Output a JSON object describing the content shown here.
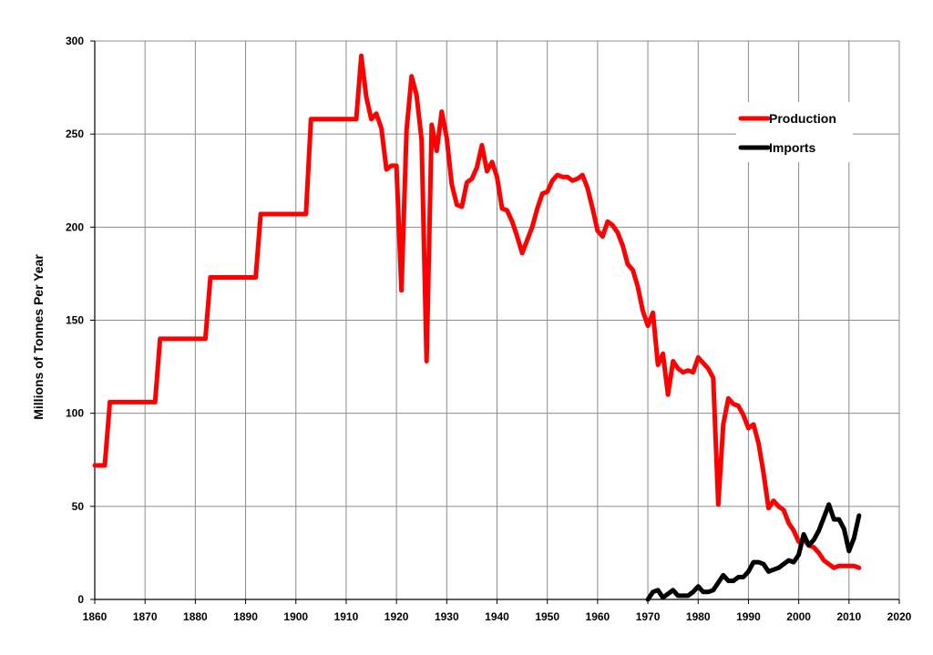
{
  "chart_data": {
    "type": "line",
    "title": "",
    "xlabel": "",
    "ylabel": "Millions of Tonnes Per Year",
    "xlim": [
      1860,
      2020
    ],
    "ylim": [
      0,
      300
    ],
    "x_ticks": [
      1860,
      1870,
      1880,
      1890,
      1900,
      1910,
      1920,
      1930,
      1940,
      1950,
      1960,
      1970,
      1980,
      1990,
      2000,
      2010,
      2020
    ],
    "y_ticks": [
      0,
      50,
      100,
      150,
      200,
      250,
      300
    ],
    "x_tick_labels": [
      "1860",
      "1870",
      "1880",
      "1890",
      "1900",
      "1910",
      "1920",
      "1930",
      "1940",
      "1950",
      "1960",
      "1970",
      "1980",
      "1990",
      "2000",
      "2010",
      "2020"
    ],
    "y_tick_labels": [
      "0",
      "50",
      "100",
      "150",
      "200",
      "250",
      "300"
    ],
    "grid": true,
    "legend_position": "top-right",
    "series": [
      {
        "name": "Production",
        "color": "#ff0000",
        "points": [
          [
            1860,
            72
          ],
          [
            1862,
            72
          ],
          [
            1863,
            106
          ],
          [
            1872,
            106
          ],
          [
            1873,
            140
          ],
          [
            1882,
            140
          ],
          [
            1883,
            173
          ],
          [
            1892,
            173
          ],
          [
            1893,
            207
          ],
          [
            1902,
            207
          ],
          [
            1903,
            258
          ],
          [
            1912,
            258
          ],
          [
            1913,
            292
          ],
          [
            1914,
            270
          ],
          [
            1915,
            258
          ],
          [
            1916,
            261
          ],
          [
            1917,
            253
          ],
          [
            1918,
            231
          ],
          [
            1919,
            233
          ],
          [
            1920,
            233
          ],
          [
            1921,
            166
          ],
          [
            1922,
            252
          ],
          [
            1923,
            281
          ],
          [
            1924,
            271
          ],
          [
            1925,
            247
          ],
          [
            1926,
            128
          ],
          [
            1927,
            255
          ],
          [
            1928,
            241
          ],
          [
            1929,
            262
          ],
          [
            1930,
            248
          ],
          [
            1931,
            223
          ],
          [
            1932,
            212
          ],
          [
            1933,
            211
          ],
          [
            1934,
            224
          ],
          [
            1935,
            226
          ],
          [
            1936,
            232
          ],
          [
            1937,
            244
          ],
          [
            1938,
            230
          ],
          [
            1939,
            235
          ],
          [
            1940,
            227
          ],
          [
            1941,
            210
          ],
          [
            1942,
            209
          ],
          [
            1943,
            203
          ],
          [
            1944,
            195
          ],
          [
            1945,
            186
          ],
          [
            1946,
            193
          ],
          [
            1947,
            200
          ],
          [
            1948,
            210
          ],
          [
            1949,
            218
          ],
          [
            1950,
            219
          ],
          [
            1951,
            225
          ],
          [
            1952,
            228
          ],
          [
            1953,
            227
          ],
          [
            1954,
            227
          ],
          [
            1955,
            225
          ],
          [
            1956,
            226
          ],
          [
            1957,
            228
          ],
          [
            1958,
            221
          ],
          [
            1959,
            210
          ],
          [
            1960,
            198
          ],
          [
            1961,
            195
          ],
          [
            1962,
            203
          ],
          [
            1963,
            201
          ],
          [
            1964,
            197
          ],
          [
            1965,
            190
          ],
          [
            1966,
            180
          ],
          [
            1967,
            177
          ],
          [
            1968,
            168
          ],
          [
            1969,
            155
          ],
          [
            1970,
            147
          ],
          [
            1971,
            154
          ],
          [
            1972,
            126
          ],
          [
            1973,
            132
          ],
          [
            1974,
            110
          ],
          [
            1975,
            128
          ],
          [
            1976,
            124
          ],
          [
            1977,
            122
          ],
          [
            1978,
            123
          ],
          [
            1979,
            122
          ],
          [
            1980,
            130
          ],
          [
            1981,
            127
          ],
          [
            1982,
            124
          ],
          [
            1983,
            119
          ],
          [
            1984,
            51
          ],
          [
            1985,
            94
          ],
          [
            1986,
            108
          ],
          [
            1987,
            105
          ],
          [
            1988,
            104
          ],
          [
            1989,
            99
          ],
          [
            1990,
            92
          ],
          [
            1991,
            94
          ],
          [
            1992,
            84
          ],
          [
            1993,
            68
          ],
          [
            1994,
            49
          ],
          [
            1995,
            53
          ],
          [
            1996,
            50
          ],
          [
            1997,
            48
          ],
          [
            1998,
            41
          ],
          [
            1999,
            37
          ],
          [
            2000,
            31
          ],
          [
            2001,
            32
          ],
          [
            2002,
            29
          ],
          [
            2003,
            28
          ],
          [
            2004,
            25
          ],
          [
            2005,
            21
          ],
          [
            2006,
            19
          ],
          [
            2007,
            17
          ],
          [
            2008,
            18
          ],
          [
            2009,
            18
          ],
          [
            2010,
            18
          ],
          [
            2011,
            18
          ],
          [
            2012,
            17
          ]
        ]
      },
      {
        "name": "Imports",
        "color": "#000000",
        "points": [
          [
            1970,
            0
          ],
          [
            1971,
            4
          ],
          [
            1972,
            5
          ],
          [
            1973,
            1
          ],
          [
            1974,
            3
          ],
          [
            1975,
            5
          ],
          [
            1976,
            2
          ],
          [
            1977,
            2
          ],
          [
            1978,
            2
          ],
          [
            1979,
            4
          ],
          [
            1980,
            7
          ],
          [
            1981,
            4
          ],
          [
            1982,
            4
          ],
          [
            1983,
            5
          ],
          [
            1984,
            9
          ],
          [
            1985,
            13
          ],
          [
            1986,
            10
          ],
          [
            1987,
            10
          ],
          [
            1988,
            12
          ],
          [
            1989,
            12
          ],
          [
            1990,
            15
          ],
          [
            1991,
            20
          ],
          [
            1992,
            20
          ],
          [
            1993,
            19
          ],
          [
            1994,
            15
          ],
          [
            1995,
            16
          ],
          [
            1996,
            17
          ],
          [
            1997,
            19
          ],
          [
            1998,
            21
          ],
          [
            1999,
            20
          ],
          [
            2000,
            24
          ],
          [
            2001,
            35
          ],
          [
            2002,
            29
          ],
          [
            2003,
            32
          ],
          [
            2004,
            37
          ],
          [
            2005,
            44
          ],
          [
            2006,
            51
          ],
          [
            2007,
            43
          ],
          [
            2008,
            43
          ],
          [
            2009,
            38
          ],
          [
            2010,
            26
          ],
          [
            2011,
            33
          ],
          [
            2012,
            45
          ]
        ]
      }
    ]
  }
}
